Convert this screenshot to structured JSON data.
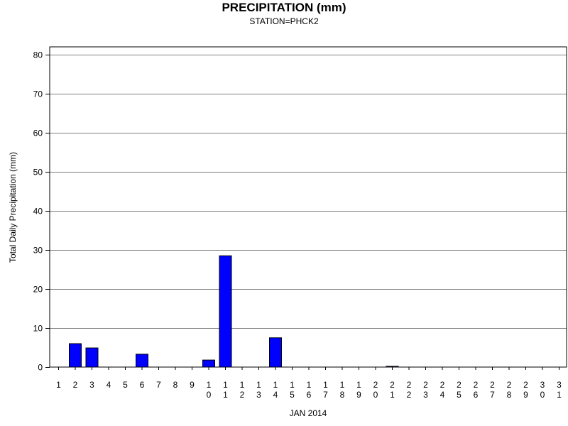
{
  "chart_data": {
    "type": "bar",
    "title": "PRECIPITATION (mm)",
    "subtitle": "STATION=PHCK2",
    "xlabel": "JAN 2014",
    "ylabel": "Total Daily Precipitation (mm)",
    "ylim": [
      0,
      80
    ],
    "yticks": [
      0,
      10,
      20,
      30,
      40,
      50,
      60,
      70,
      80
    ],
    "grid": true,
    "categories": [
      "1",
      "2",
      "3",
      "4",
      "5",
      "6",
      "7",
      "8",
      "9",
      "10",
      "11",
      "12",
      "13",
      "14",
      "15",
      "16",
      "17",
      "18",
      "19",
      "20",
      "21",
      "22",
      "23",
      "24",
      "25",
      "26",
      "27",
      "28",
      "29",
      "30",
      "31"
    ],
    "values": [
      0,
      6.0,
      4.9,
      0,
      0,
      3.3,
      0,
      0,
      0,
      1.8,
      28.5,
      0,
      0,
      7.5,
      0,
      0,
      0,
      0,
      0,
      0,
      0.2,
      0,
      0,
      0,
      0,
      0,
      0,
      0,
      0,
      0,
      0
    ],
    "bar_color": "#0000ff",
    "bar_edge_color": "#000000",
    "grid_color": "#808080"
  }
}
